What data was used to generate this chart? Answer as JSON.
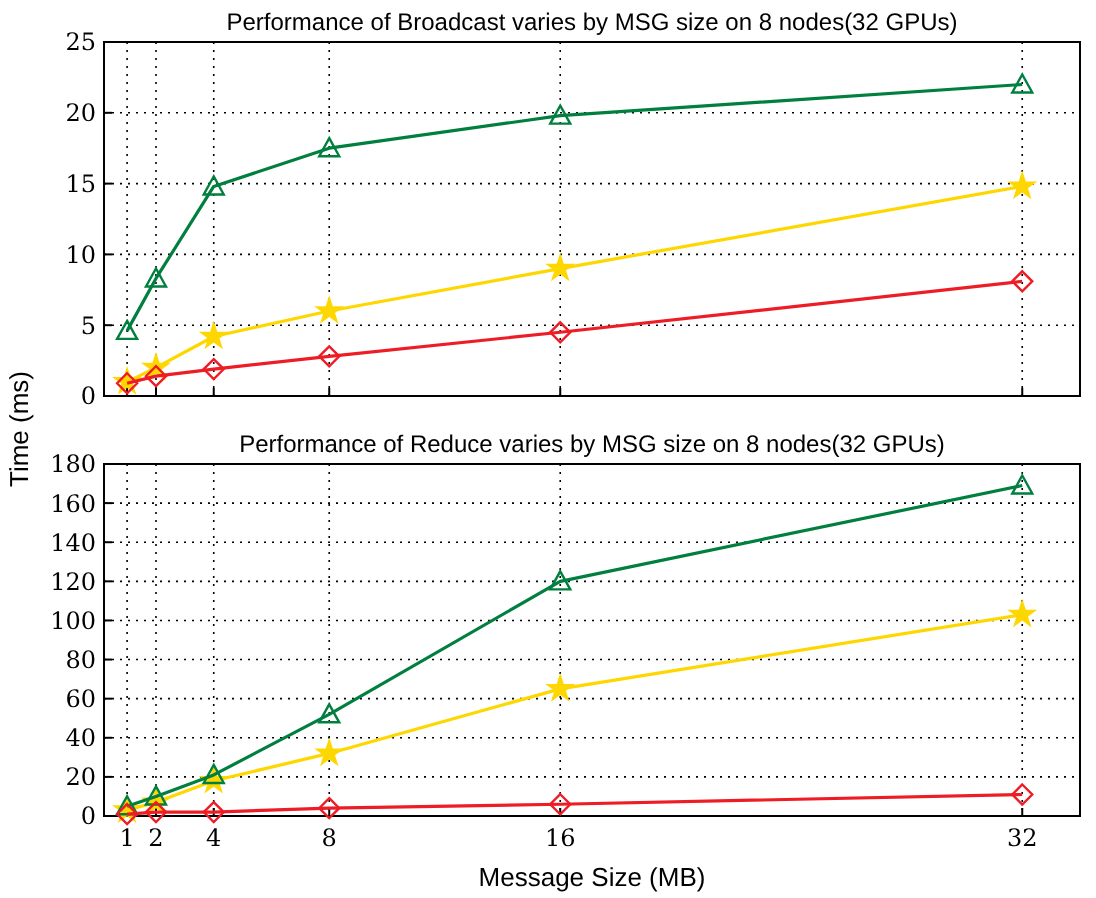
{
  "chart_data": [
    {
      "type": "line",
      "title": "Performance of Broadcast varies by MSG size on 8 nodes(32 GPUs)",
      "x": [
        1,
        2,
        4,
        8,
        16,
        32
      ],
      "xlim": [
        0.2,
        34
      ],
      "xticks": [
        1,
        2,
        4,
        8,
        16,
        32
      ],
      "ylim": [
        0,
        25
      ],
      "yticks": [
        0,
        5,
        10,
        15,
        20,
        25
      ],
      "grid": true,
      "tick_labels": "y",
      "series": [
        {
          "color": "#ffd700",
          "marker": "star",
          "values": [
            1.0,
            2.0,
            4.2,
            6.0,
            9.0,
            14.8
          ]
        },
        {
          "color": "#007f3f",
          "marker": "triangle",
          "values": [
            4.6,
            8.3,
            14.8,
            17.5,
            19.8,
            22.0
          ]
        },
        {
          "color": "#ee1c25",
          "marker": "diamond",
          "values": [
            0.9,
            1.4,
            1.9,
            2.8,
            4.5,
            8.1
          ]
        }
      ]
    },
    {
      "type": "line",
      "title": "Performance of Reduce varies by MSG size on 8 nodes(32 GPUs)",
      "xlabel": "Message Size (MB)",
      "ylabel": "Time (ms)",
      "x": [
        1,
        2,
        4,
        8,
        16,
        32
      ],
      "xlim": [
        0.2,
        34
      ],
      "xticks": [
        1,
        2,
        4,
        8,
        16,
        32
      ],
      "ylim": [
        0,
        180
      ],
      "yticks": [
        0,
        20,
        40,
        60,
        80,
        100,
        120,
        140,
        160,
        180
      ],
      "grid": true,
      "series": [
        {
          "color": "#ffd700",
          "marker": "star",
          "values": [
            3,
            7,
            18,
            32,
            65,
            103
          ]
        },
        {
          "color": "#007f3f",
          "marker": "triangle",
          "values": [
            5,
            10,
            21,
            52,
            120,
            169
          ]
        },
        {
          "color": "#ee1c25",
          "marker": "diamond",
          "values": [
            1,
            2,
            2,
            4,
            6,
            11
          ]
        }
      ]
    }
  ]
}
